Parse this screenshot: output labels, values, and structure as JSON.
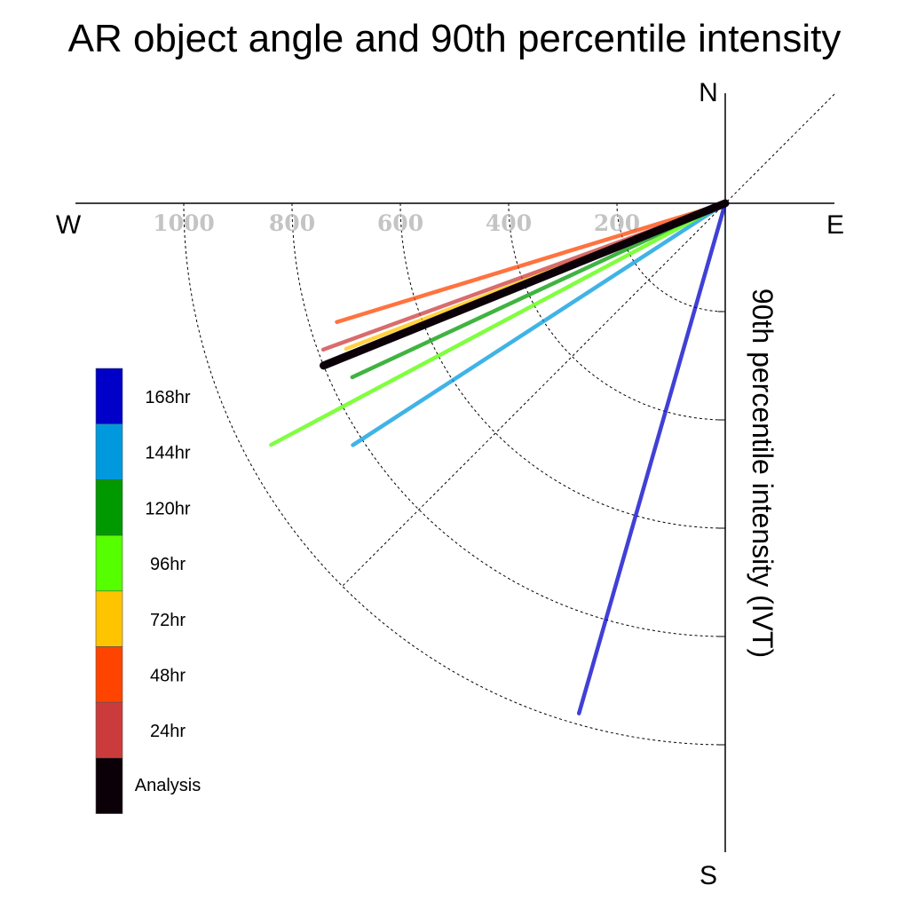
{
  "chart_data": {
    "type": "polar",
    "title": "AR object angle and 90th percentile intensity",
    "radial_label": "90th percentile intensity (IVT)",
    "compass": {
      "north": "N",
      "south": "S",
      "east": "E",
      "west": "W"
    },
    "radial_ticks": [
      200,
      400,
      600,
      800,
      1000
    ],
    "radial_tick_labels": [
      "200",
      "400",
      "600",
      "800",
      "1000"
    ],
    "radial_grid_max": 1000,
    "angle_convention": "degrees clockwise from north",
    "series": [
      {
        "name": "168hr",
        "color": "#0000c8",
        "angle_deg": 196,
        "intensity": 980
      },
      {
        "name": "144hr",
        "color": "#0099dd",
        "angle_deg": 237,
        "intensity": 820
      },
      {
        "name": "120hr",
        "color": "#009a00",
        "angle_deg": 245,
        "intensity": 760
      },
      {
        "name": "96hr",
        "color": "#55ff00",
        "angle_deg": 242,
        "intensity": 950
      },
      {
        "name": "72hr",
        "color": "#ffc400",
        "angle_deg": 249,
        "intensity": 750
      },
      {
        "name": "48hr",
        "color": "#ff4400",
        "angle_deg": 253,
        "intensity": 750
      },
      {
        "name": "24hr",
        "color": "#cc3b3b",
        "angle_deg": 250,
        "intensity": 790
      },
      {
        "name": "Analysis",
        "color": "#0b0008",
        "angle_deg": 248,
        "intensity": 800
      }
    ],
    "legend": {
      "placement": "left",
      "items": [
        {
          "label": "168hr",
          "color": "#0000c8"
        },
        {
          "label": "144hr",
          "color": "#0099dd"
        },
        {
          "label": "120hr",
          "color": "#009a00"
        },
        {
          "label": "96hr",
          "color": "#55ff00"
        },
        {
          "label": "72hr",
          "color": "#ffc400"
        },
        {
          "label": "48hr",
          "color": "#ff4400"
        },
        {
          "label": "24hr",
          "color": "#cc3b3b"
        },
        {
          "label": "Analysis",
          "color": "#0b0008"
        }
      ]
    }
  }
}
